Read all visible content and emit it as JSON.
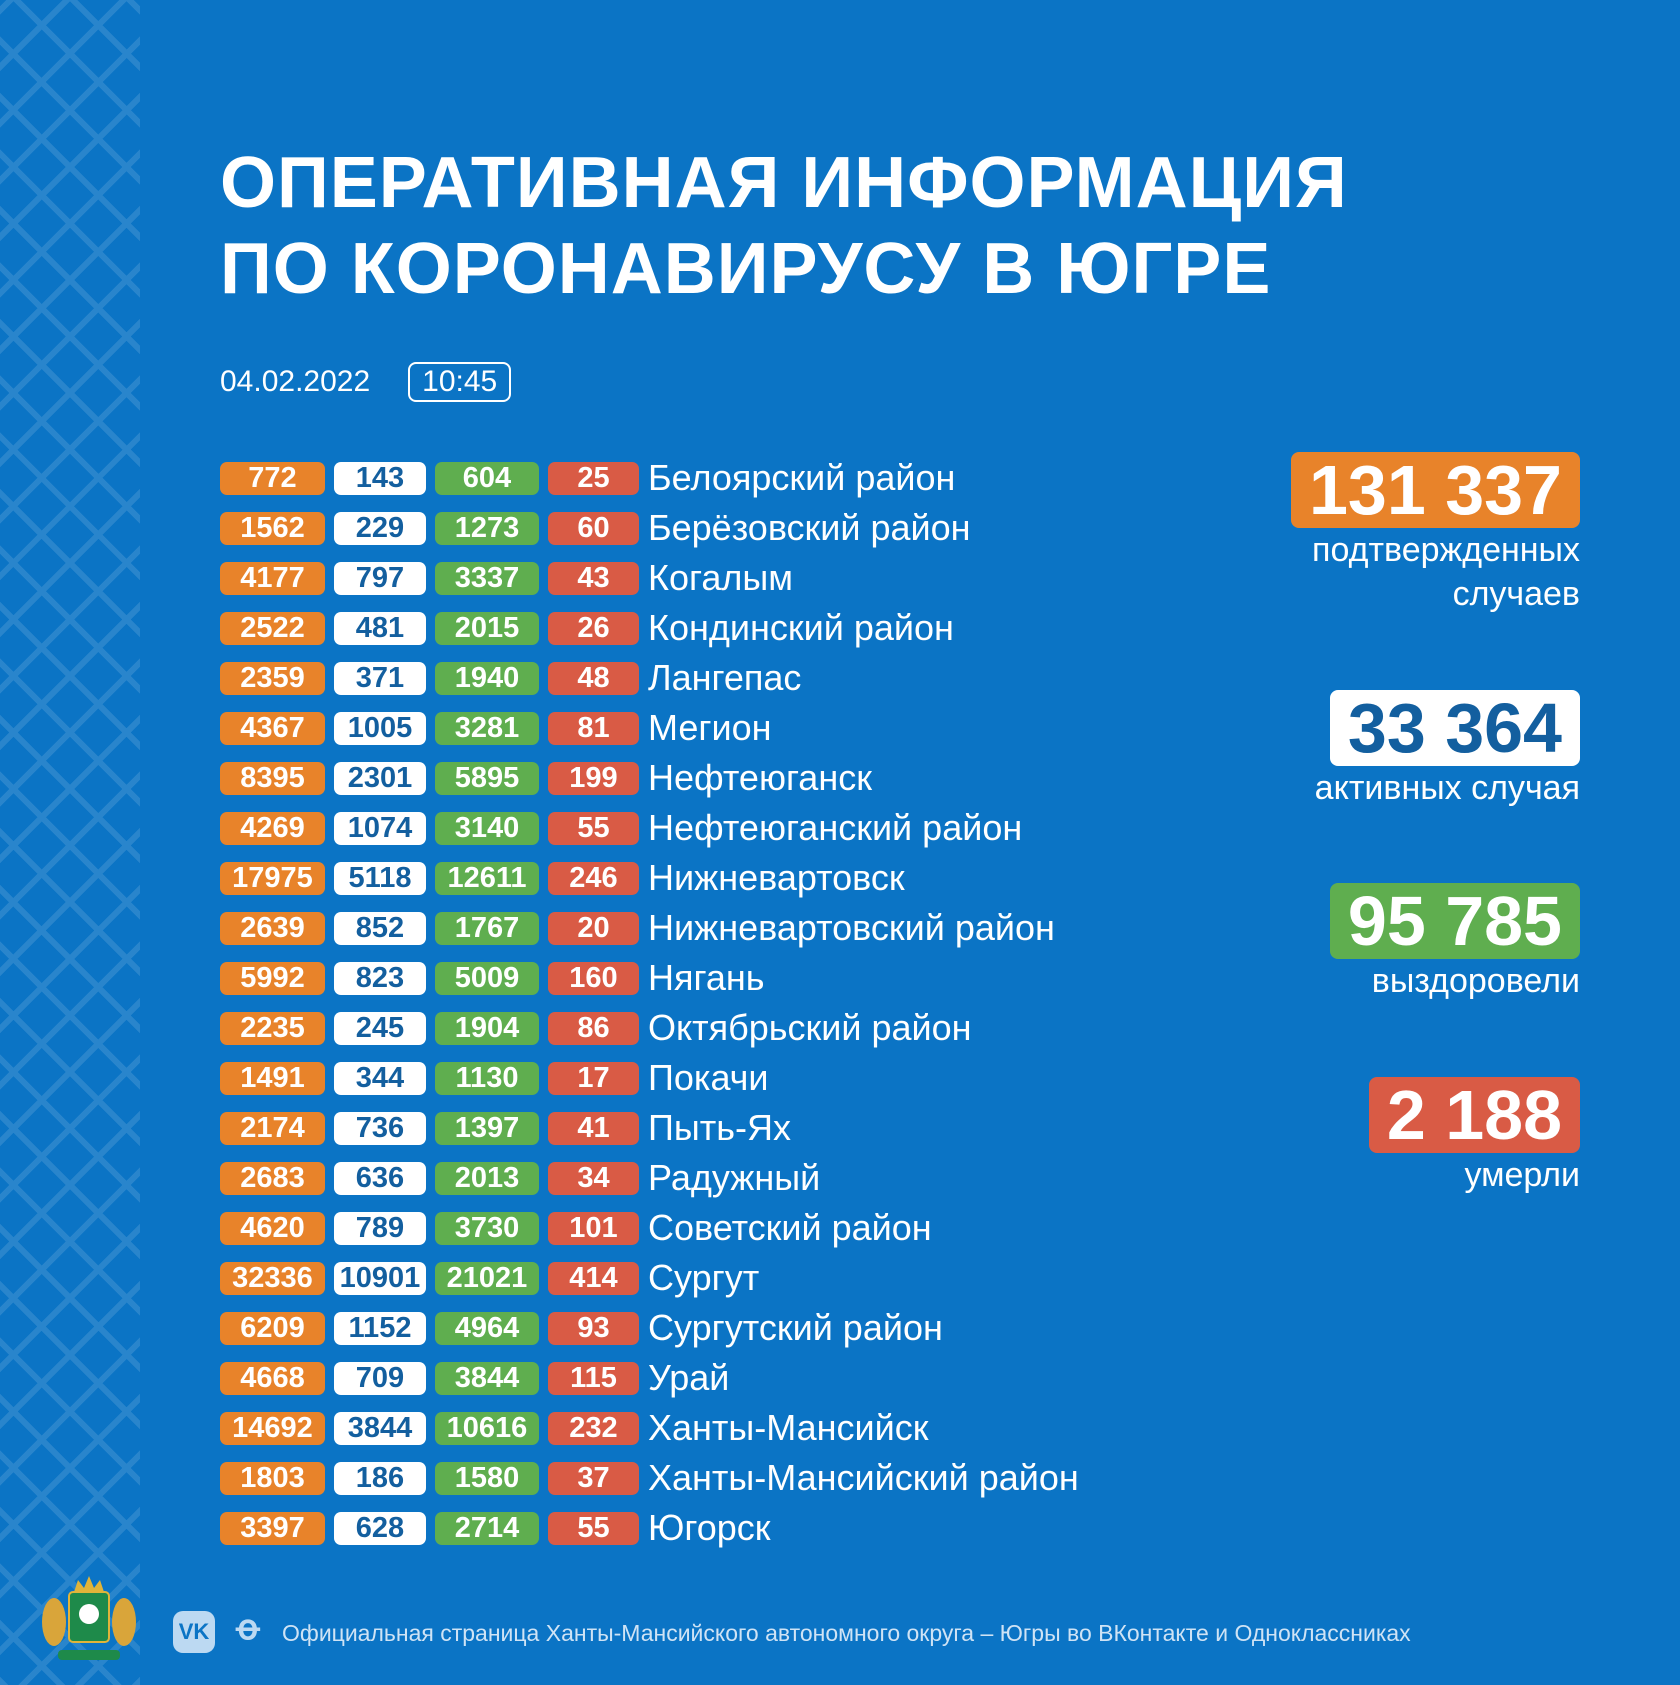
{
  "title": {
    "line1": "ОПЕРАТИВНАЯ ИНФОРМАЦИЯ",
    "line2": "ПО КОРОНАВИРУСУ В ЮГРЕ"
  },
  "date": "04.02.2022",
  "time": "10:45",
  "rows": [
    {
      "name": "Белоярский район",
      "confirmed": "772",
      "active": "143",
      "recovered": "604",
      "died": "25"
    },
    {
      "name": "Берёзовский район",
      "confirmed": "1562",
      "active": "229",
      "recovered": "1273",
      "died": "60"
    },
    {
      "name": "Когалым",
      "confirmed": "4177",
      "active": "797",
      "recovered": "3337",
      "died": "43"
    },
    {
      "name": "Кондинский район",
      "confirmed": "2522",
      "active": "481",
      "recovered": "2015",
      "died": "26"
    },
    {
      "name": "Лангепас",
      "confirmed": "2359",
      "active": "371",
      "recovered": "1940",
      "died": "48"
    },
    {
      "name": "Мегион",
      "confirmed": "4367",
      "active": "1005",
      "recovered": "3281",
      "died": "81"
    },
    {
      "name": "Нефтеюганск",
      "confirmed": "8395",
      "active": "2301",
      "recovered": "5895",
      "died": "199"
    },
    {
      "name": "Нефтеюганский район",
      "confirmed": "4269",
      "active": "1074",
      "recovered": "3140",
      "died": "55"
    },
    {
      "name": "Нижневартовск",
      "confirmed": "17975",
      "active": "5118",
      "recovered": "12611",
      "died": "246"
    },
    {
      "name": "Нижневартовский район",
      "confirmed": "2639",
      "active": "852",
      "recovered": "1767",
      "died": "20"
    },
    {
      "name": "Нягань",
      "confirmed": "5992",
      "active": "823",
      "recovered": "5009",
      "died": "160"
    },
    {
      "name": "Октябрьский район",
      "confirmed": "2235",
      "active": "245",
      "recovered": "1904",
      "died": "86"
    },
    {
      "name": "Покачи",
      "confirmed": "1491",
      "active": "344",
      "recovered": "1130",
      "died": "17"
    },
    {
      "name": "Пыть-Ях",
      "confirmed": "2174",
      "active": "736",
      "recovered": "1397",
      "died": "41"
    },
    {
      "name": "Радужный",
      "confirmed": "2683",
      "active": "636",
      "recovered": "2013",
      "died": "34"
    },
    {
      "name": "Советский район",
      "confirmed": "4620",
      "active": "789",
      "recovered": "3730",
      "died": "101"
    },
    {
      "name": "Сургут",
      "confirmed": "32336",
      "active": "10901",
      "recovered": "21021",
      "died": "414"
    },
    {
      "name": "Сургутский район",
      "confirmed": "6209",
      "active": "1152",
      "recovered": "4964",
      "died": "93"
    },
    {
      "name": "Урай",
      "confirmed": "4668",
      "active": "709",
      "recovered": "3844",
      "died": "115"
    },
    {
      "name": "Ханты-Мансийск",
      "confirmed": "14692",
      "active": "3844",
      "recovered": "10616",
      "died": "232"
    },
    {
      "name": "Ханты-Мансийский район",
      "confirmed": "1803",
      "active": "186",
      "recovered": "1580",
      "died": "37"
    },
    {
      "name": "Югорск",
      "confirmed": "3397",
      "active": "628",
      "recovered": "2714",
      "died": "55"
    }
  ],
  "summary": {
    "confirmed": {
      "value": "131 337",
      "label1": "подтвержденных",
      "label2": "случаев",
      "color": "#e8832a"
    },
    "active": {
      "value": "33 364",
      "label": "активных случая",
      "color": "#ffffff"
    },
    "recovered": {
      "value": "95 785",
      "label": "выздоровели",
      "color": "#5fae4f"
    },
    "died": {
      "value": "2 188",
      "label": "умерли",
      "color": "#d95b45"
    }
  },
  "footer": {
    "vk": "VK",
    "text": "Официальная страница Ханты-Мансийского автономного округа – Югры во ВКонтакте и Одноклассниках"
  }
}
